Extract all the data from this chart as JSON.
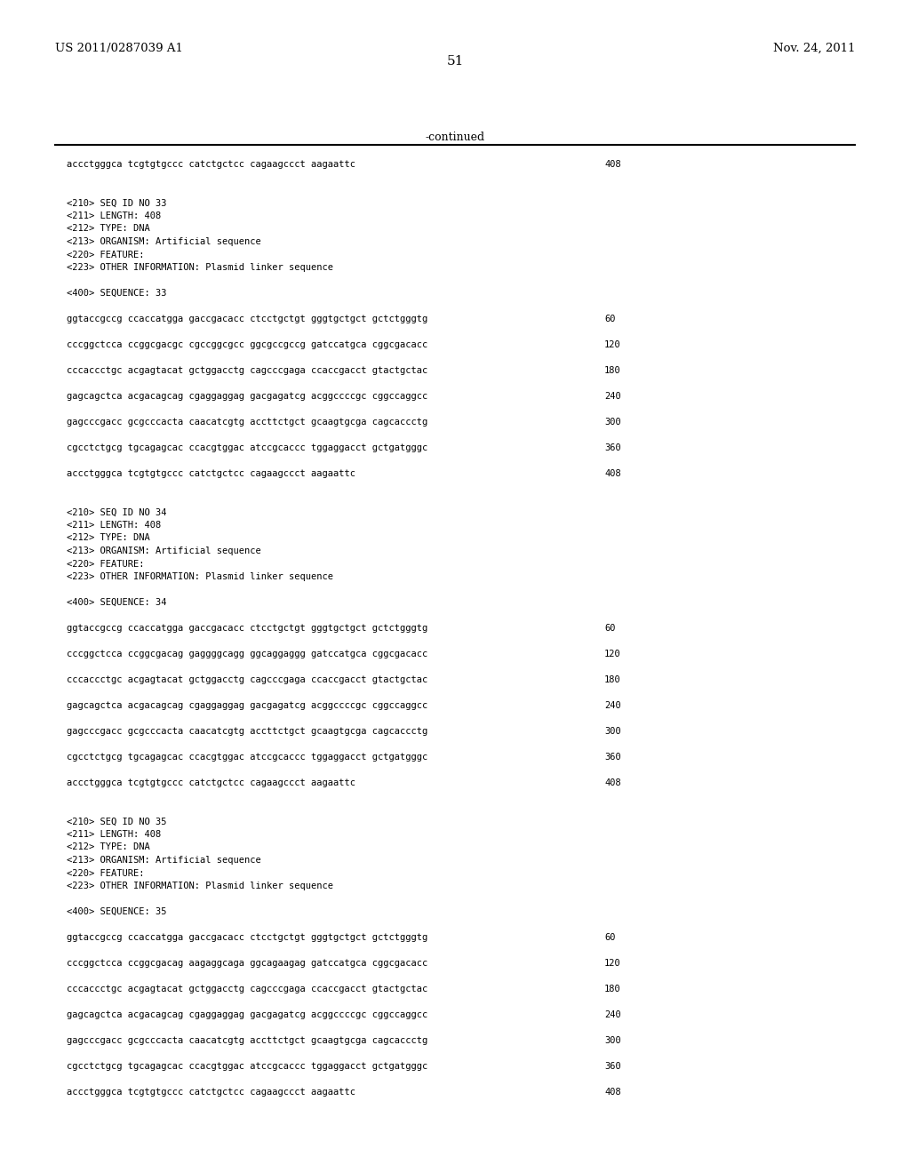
{
  "header_left": "US 2011/0287039 A1",
  "header_right": "Nov. 24, 2011",
  "page_number": "51",
  "continued_label": "-continued",
  "background_color": "#ffffff",
  "text_color": "#000000",
  "line_color": "#000000",
  "header_fontsize": 9.5,
  "page_num_fontsize": 11,
  "mono_fontsize": 7.5,
  "content": [
    {
      "type": "seq",
      "text": "accctgggca tcgtgtgccc catctgctcc cagaagccct aagaattc",
      "num": "408"
    },
    {
      "type": "gap2"
    },
    {
      "type": "meta",
      "text": "<210> SEQ ID NO 33"
    },
    {
      "type": "meta",
      "text": "<211> LENGTH: 408"
    },
    {
      "type": "meta",
      "text": "<212> TYPE: DNA"
    },
    {
      "type": "meta",
      "text": "<213> ORGANISM: Artificial sequence"
    },
    {
      "type": "meta",
      "text": "<220> FEATURE:"
    },
    {
      "type": "meta",
      "text": "<223> OTHER INFORMATION: Plasmid linker sequence"
    },
    {
      "type": "gap1"
    },
    {
      "type": "meta",
      "text": "<400> SEQUENCE: 33"
    },
    {
      "type": "gap1"
    },
    {
      "type": "seq",
      "text": "ggtaccgccg ccaccatgga gaccgacacc ctcctgctgt gggtgctgct gctctgggtg",
      "num": "60"
    },
    {
      "type": "gap1"
    },
    {
      "type": "seq",
      "text": "cccggctcca ccggcgacgc cgccggcgcc ggcgccgccg gatccatgca cggcgacacc",
      "num": "120"
    },
    {
      "type": "gap1"
    },
    {
      "type": "seq",
      "text": "cccaccctgc acgagtacat gctggacctg cagcccgaga ccaccgacct gtactgctac",
      "num": "180"
    },
    {
      "type": "gap1"
    },
    {
      "type": "seq",
      "text": "gagcagctca acgacagcag cgaggaggag gacgagatcg acggccccgc cggccaggcc",
      "num": "240"
    },
    {
      "type": "gap1"
    },
    {
      "type": "seq",
      "text": "gagcccgacc gcgcccacta caacatcgtg accttctgct gcaagtgcga cagcaccctg",
      "num": "300"
    },
    {
      "type": "gap1"
    },
    {
      "type": "seq",
      "text": "cgcctctgcg tgcagagcac ccacgtggac atccgcaccc tggaggacct gctgatgggc",
      "num": "360"
    },
    {
      "type": "gap1"
    },
    {
      "type": "seq",
      "text": "accctgggca tcgtgtgccc catctgctcc cagaagccct aagaattc",
      "num": "408"
    },
    {
      "type": "gap2"
    },
    {
      "type": "meta",
      "text": "<210> SEQ ID NO 34"
    },
    {
      "type": "meta",
      "text": "<211> LENGTH: 408"
    },
    {
      "type": "meta",
      "text": "<212> TYPE: DNA"
    },
    {
      "type": "meta",
      "text": "<213> ORGANISM: Artificial sequence"
    },
    {
      "type": "meta",
      "text": "<220> FEATURE:"
    },
    {
      "type": "meta",
      "text": "<223> OTHER INFORMATION: Plasmid linker sequence"
    },
    {
      "type": "gap1"
    },
    {
      "type": "meta",
      "text": "<400> SEQUENCE: 34"
    },
    {
      "type": "gap1"
    },
    {
      "type": "seq",
      "text": "ggtaccgccg ccaccatgga gaccgacacc ctcctgctgt gggtgctgct gctctgggtg",
      "num": "60"
    },
    {
      "type": "gap1"
    },
    {
      "type": "seq",
      "text": "cccggctcca ccggcgacag gaggggcagg ggcaggaggg gatccatgca cggcgacacc",
      "num": "120"
    },
    {
      "type": "gap1"
    },
    {
      "type": "seq",
      "text": "cccaccctgc acgagtacat gctggacctg cagcccgaga ccaccgacct gtactgctac",
      "num": "180"
    },
    {
      "type": "gap1"
    },
    {
      "type": "seq",
      "text": "gagcagctca acgacagcag cgaggaggag gacgagatcg acggccccgc cggccaggcc",
      "num": "240"
    },
    {
      "type": "gap1"
    },
    {
      "type": "seq",
      "text": "gagcccgacc gcgcccacta caacatcgtg accttctgct gcaagtgcga cagcaccctg",
      "num": "300"
    },
    {
      "type": "gap1"
    },
    {
      "type": "seq",
      "text": "cgcctctgcg tgcagagcac ccacgtggac atccgcaccc tggaggacct gctgatgggc",
      "num": "360"
    },
    {
      "type": "gap1"
    },
    {
      "type": "seq",
      "text": "accctgggca tcgtgtgccc catctgctcc cagaagccct aagaattc",
      "num": "408"
    },
    {
      "type": "gap2"
    },
    {
      "type": "meta",
      "text": "<210> SEQ ID NO 35"
    },
    {
      "type": "meta",
      "text": "<211> LENGTH: 408"
    },
    {
      "type": "meta",
      "text": "<212> TYPE: DNA"
    },
    {
      "type": "meta",
      "text": "<213> ORGANISM: Artificial sequence"
    },
    {
      "type": "meta",
      "text": "<220> FEATURE:"
    },
    {
      "type": "meta",
      "text": "<223> OTHER INFORMATION: Plasmid linker sequence"
    },
    {
      "type": "gap1"
    },
    {
      "type": "meta",
      "text": "<400> SEQUENCE: 35"
    },
    {
      "type": "gap1"
    },
    {
      "type": "seq",
      "text": "ggtaccgccg ccaccatgga gaccgacacc ctcctgctgt gggtgctgct gctctgggtg",
      "num": "60"
    },
    {
      "type": "gap1"
    },
    {
      "type": "seq",
      "text": "cccggctcca ccggcgacag aagaggcaga ggcagaagag gatccatgca cggcgacacc",
      "num": "120"
    },
    {
      "type": "gap1"
    },
    {
      "type": "seq",
      "text": "cccaccctgc acgagtacat gctggacctg cagcccgaga ccaccgacct gtactgctac",
      "num": "180"
    },
    {
      "type": "gap1"
    },
    {
      "type": "seq",
      "text": "gagcagctca acgacagcag cgaggaggag gacgagatcg acggccccgc cggccaggcc",
      "num": "240"
    },
    {
      "type": "gap1"
    },
    {
      "type": "seq",
      "text": "gagcccgacc gcgcccacta caacatcgtg accttctgct gcaagtgcga cagcaccctg",
      "num": "300"
    },
    {
      "type": "gap1"
    },
    {
      "type": "seq",
      "text": "cgcctctgcg tgcagagcac ccacgtggac atccgcaccc tggaggacct gctgatgggc",
      "num": "360"
    },
    {
      "type": "gap1"
    },
    {
      "type": "seq",
      "text": "accctgggca tcgtgtgccc catctgctcc cagaagccct aagaattc",
      "num": "408"
    }
  ]
}
